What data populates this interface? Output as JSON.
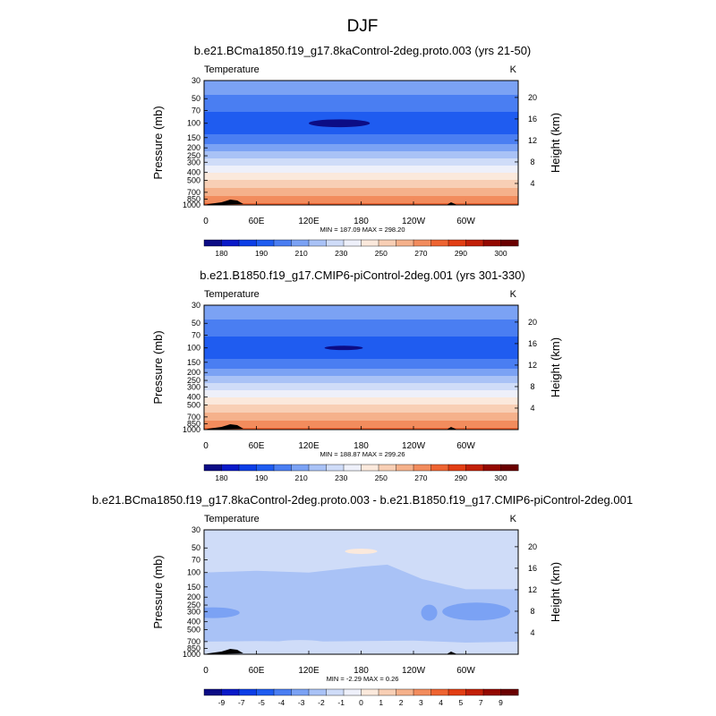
{
  "page_title": "DJF",
  "chart_data": [
    {
      "type": "heatmap",
      "title": "b.e21.BCma1850.f19_g17.8kaControl-2deg.proto.003 (yrs 21-50)",
      "left_label": "Temperature",
      "right_label": "K",
      "ylabel": "Pressure (mb)",
      "ylabel_right": "Height (km)",
      "x_ticks": [
        "0",
        "60E",
        "120E",
        "180",
        "120W",
        "60W"
      ],
      "x_tick_positions_deg": [
        0,
        60,
        120,
        180,
        240,
        300
      ],
      "xlim": [
        0,
        360
      ],
      "y_ticks": [
        "30",
        "50",
        "70",
        "100",
        "150",
        "200",
        "250",
        "300",
        "400",
        "500",
        "700",
        "850",
        "1000"
      ],
      "y_tick_values_mb": [
        30,
        50,
        70,
        100,
        150,
        200,
        250,
        300,
        400,
        500,
        700,
        850,
        1000
      ],
      "ylim_mb": [
        1000,
        30
      ],
      "y_scale": "log",
      "height_ticks": [
        "4",
        "8",
        "12",
        "16",
        "20"
      ],
      "height_tick_values_km": [
        4,
        8,
        12,
        16,
        20
      ],
      "stats": "MIN = 187.09   MAX = 298.20",
      "colorbar": {
        "labels": [
          "180",
          "190",
          "210",
          "230",
          "250",
          "270",
          "290",
          "300"
        ],
        "colors": [
          "#0c0c85",
          "#0a1ac8",
          "#0c3ee6",
          "#1f5cf0",
          "#4a7ef2",
          "#7ba2f4",
          "#a9c2f6",
          "#cfdcf8",
          "#eef0fa",
          "#fbe9dc",
          "#f8cfb5",
          "#f5b18b",
          "#f28c5d",
          "#ee6432",
          "#e23e14",
          "#c22008",
          "#940800",
          "#6a0000"
        ]
      },
      "profile": [
        {
          "p": 30,
          "v": 217
        },
        {
          "p": 45,
          "v": 210
        },
        {
          "p": 60,
          "v": 204
        },
        {
          "p": 75,
          "v": 199
        },
        {
          "p": 90,
          "v": 195
        },
        {
          "p": 100,
          "v": 193
        },
        {
          "p": 120,
          "v": 196
        },
        {
          "p": 150,
          "v": 203
        },
        {
          "p": 180,
          "v": 210
        },
        {
          "p": 200,
          "v": 216
        },
        {
          "p": 230,
          "v": 222
        },
        {
          "p": 260,
          "v": 228
        },
        {
          "p": 300,
          "v": 236
        },
        {
          "p": 350,
          "v": 243
        },
        {
          "p": 400,
          "v": 250
        },
        {
          "p": 450,
          "v": 256
        },
        {
          "p": 500,
          "v": 261
        },
        {
          "p": 600,
          "v": 268
        },
        {
          "p": 700,
          "v": 275
        },
        {
          "p": 800,
          "v": 281
        },
        {
          "p": 850,
          "v": 284
        },
        {
          "p": 925,
          "v": 288
        },
        {
          "p": 1000,
          "v": 293
        }
      ],
      "blob": {
        "lon": 155,
        "p": 100,
        "lon_halfwidth": 35,
        "p_halfwidth": 9,
        "v": 187
      }
    },
    {
      "type": "heatmap",
      "title": "b.e21.B1850.f19_g17.CMIP6-piControl-2deg.001 (yrs 301-330)",
      "left_label": "Temperature",
      "right_label": "K",
      "ylabel": "Pressure (mb)",
      "ylabel_right": "Height (km)",
      "x_ticks": [
        "0",
        "60E",
        "120E",
        "180",
        "120W",
        "60W"
      ],
      "x_tick_positions_deg": [
        0,
        60,
        120,
        180,
        240,
        300
      ],
      "xlim": [
        0,
        360
      ],
      "y_ticks": [
        "30",
        "50",
        "70",
        "100",
        "150",
        "200",
        "250",
        "300",
        "400",
        "500",
        "700",
        "850",
        "1000"
      ],
      "y_tick_values_mb": [
        30,
        50,
        70,
        100,
        150,
        200,
        250,
        300,
        400,
        500,
        700,
        850,
        1000
      ],
      "ylim_mb": [
        1000,
        30
      ],
      "y_scale": "log",
      "height_ticks": [
        "4",
        "8",
        "12",
        "16",
        "20"
      ],
      "height_tick_values_km": [
        4,
        8,
        12,
        16,
        20
      ],
      "stats": "MIN = 188.87   MAX = 299.26",
      "colorbar": {
        "labels": [
          "180",
          "190",
          "210",
          "230",
          "250",
          "270",
          "290",
          "300"
        ],
        "colors": [
          "#0c0c85",
          "#0a1ac8",
          "#0c3ee6",
          "#1f5cf0",
          "#4a7ef2",
          "#7ba2f4",
          "#a9c2f6",
          "#cfdcf8",
          "#eef0fa",
          "#fbe9dc",
          "#f8cfb5",
          "#f5b18b",
          "#f28c5d",
          "#ee6432",
          "#e23e14",
          "#c22008",
          "#940800",
          "#6a0000"
        ]
      },
      "profile": [
        {
          "p": 30,
          "v": 217
        },
        {
          "p": 45,
          "v": 210
        },
        {
          "p": 60,
          "v": 204
        },
        {
          "p": 75,
          "v": 199
        },
        {
          "p": 90,
          "v": 195
        },
        {
          "p": 100,
          "v": 193
        },
        {
          "p": 120,
          "v": 196
        },
        {
          "p": 150,
          "v": 203
        },
        {
          "p": 180,
          "v": 210
        },
        {
          "p": 200,
          "v": 216
        },
        {
          "p": 230,
          "v": 222
        },
        {
          "p": 260,
          "v": 228
        },
        {
          "p": 300,
          "v": 236
        },
        {
          "p": 350,
          "v": 243
        },
        {
          "p": 400,
          "v": 250
        },
        {
          "p": 450,
          "v": 256
        },
        {
          "p": 500,
          "v": 261
        },
        {
          "p": 600,
          "v": 268
        },
        {
          "p": 700,
          "v": 275
        },
        {
          "p": 800,
          "v": 281
        },
        {
          "p": 850,
          "v": 284
        },
        {
          "p": 925,
          "v": 288
        },
        {
          "p": 1000,
          "v": 293
        }
      ],
      "blob": {
        "lon": 160,
        "p": 100,
        "lon_halfwidth": 22,
        "p_halfwidth": 5,
        "v": 188
      }
    },
    {
      "type": "heatmap",
      "title": "b.e21.BCma1850.f19_g17.8kaControl-2deg.proto.003 - b.e21.B1850.f19_g17.CMIP6-piControl-2deg.001",
      "left_label": "Temperature",
      "right_label": "K",
      "ylabel": "Pressure (mb)",
      "ylabel_right": "Height (km)",
      "x_ticks": [
        "0",
        "60E",
        "120E",
        "180",
        "120W",
        "60W"
      ],
      "x_tick_positions_deg": [
        0,
        60,
        120,
        180,
        240,
        300
      ],
      "xlim": [
        0,
        360
      ],
      "y_ticks": [
        "30",
        "50",
        "70",
        "100",
        "150",
        "200",
        "250",
        "300",
        "400",
        "500",
        "700",
        "850",
        "1000"
      ],
      "y_tick_values_mb": [
        30,
        50,
        70,
        100,
        150,
        200,
        250,
        300,
        400,
        500,
        700,
        850,
        1000
      ],
      "ylim_mb": [
        1000,
        30
      ],
      "y_scale": "log",
      "height_ticks": [
        "4",
        "8",
        "12",
        "16",
        "20"
      ],
      "height_tick_values_km": [
        4,
        8,
        12,
        16,
        20
      ],
      "stats": "MIN =  -2.29   MAX =   0.26",
      "colorbar": {
        "labels": [
          "-9",
          "-7",
          "-5",
          "-4",
          "-3",
          "-2",
          "-1",
          "0",
          "1",
          "2",
          "3",
          "4",
          "5",
          "7",
          "9"
        ],
        "colors": [
          "#0c0c85",
          "#0a1ac8",
          "#0c3ee6",
          "#1f5cf0",
          "#4a7ef2",
          "#7ba2f4",
          "#a9c2f6",
          "#cfdcf8",
          "#eef0fa",
          "#fbe9dc",
          "#f8cfb5",
          "#f5b18b",
          "#f28c5d",
          "#ee6432",
          "#e23e14",
          "#c22008",
          "#940800",
          "#6a0000"
        ]
      },
      "diff_regions": [
        {
          "level": "-1 to 0",
          "description": "upper layer above ~100 mb and lower layer below ~700 mb"
        },
        {
          "level": "-2 to -1",
          "description": "mid-troposphere band ~100-700 mb"
        },
        {
          "level": "-3 to -2",
          "description": "small patches near 300 mb at 0-25E, 250W-265W and 280W-345W"
        },
        {
          "level": "0 to 1",
          "description": "small patch near 55 mb around 180"
        }
      ]
    }
  ]
}
